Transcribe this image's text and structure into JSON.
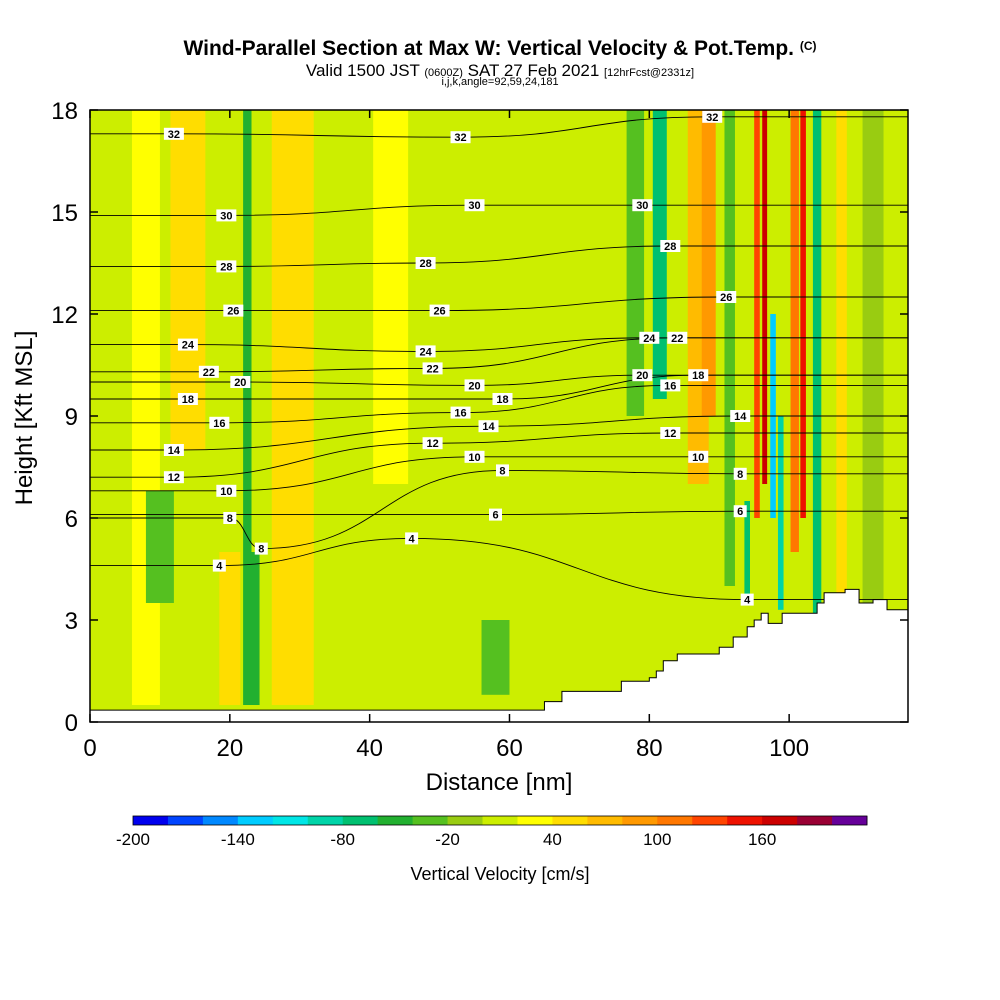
{
  "title": {
    "main": "Wind-Parallel Section at Max W: Vertical Velocity & Pot.Temp.",
    "main_units": "(C)",
    "valid_prefix": "Valid 1500 JST",
    "valid_zulu": "(0600Z)",
    "valid_date": "SAT 27 Feb 2021",
    "forecast": "[12hrFcst@2331z]",
    "indices": "i,j,k,angle=92,59,24,181"
  },
  "chart_data": {
    "type": "heatmap",
    "xlabel": "Distance [nm]",
    "ylabel": "Height [Kft MSL]",
    "xlim": [
      0,
      117
    ],
    "ylim": [
      0,
      18
    ],
    "x_ticks": [
      0,
      20,
      40,
      60,
      80,
      100
    ],
    "y_ticks": [
      0,
      3,
      6,
      9,
      12,
      15,
      18
    ],
    "x_tick_labels": [
      "0",
      "20",
      "40",
      "60",
      "80",
      "100"
    ],
    "y_tick_labels": [
      "0",
      "3",
      "6",
      "9",
      "12",
      "15",
      "18"
    ],
    "background_value_cm_s": 10,
    "bands": [
      {
        "x": 8,
        "ymin": 0.5,
        "ymax": 18,
        "w": 4,
        "value": 30
      },
      {
        "x": 14,
        "ymin": 8,
        "ymax": 18,
        "w": 5,
        "value": 45
      },
      {
        "x": 20,
        "ymin": 0.5,
        "ymax": 5,
        "w": 3,
        "value": 40
      },
      {
        "x": 22.5,
        "ymin": 0.5,
        "ymax": 18,
        "w": 1.2,
        "value": -60
      },
      {
        "x": 23.5,
        "ymin": 0.5,
        "ymax": 5,
        "w": 1.5,
        "value": -50
      },
      {
        "x": 29,
        "ymin": 0.5,
        "ymax": 18,
        "w": 6,
        "value": 50
      },
      {
        "x": 10,
        "ymin": 3.5,
        "ymax": 6.8,
        "w": 4,
        "value": -30
      },
      {
        "x": 43,
        "ymin": 7,
        "ymax": 18,
        "w": 5,
        "value": 20
      },
      {
        "x": 58,
        "ymin": 0.8,
        "ymax": 3,
        "w": 4,
        "value": -25
      },
      {
        "x": 78,
        "ymin": 9,
        "ymax": 18,
        "w": 2.5,
        "value": -40
      },
      {
        "x": 81.5,
        "ymin": 9.5,
        "ymax": 18,
        "w": 2,
        "value": -80
      },
      {
        "x": 87,
        "ymin": 7,
        "ymax": 18,
        "w": 3,
        "value": 60
      },
      {
        "x": 88.5,
        "ymin": 9,
        "ymax": 18,
        "w": 2,
        "value": 80
      },
      {
        "x": 91.5,
        "ymin": 4,
        "ymax": 18,
        "w": 1.5,
        "value": -40
      },
      {
        "x": 94,
        "ymin": 3.5,
        "ymax": 6.5,
        "w": 0.8,
        "value": -80
      },
      {
        "x": 95.4,
        "ymin": 6,
        "ymax": 18,
        "w": 0.8,
        "value": 130
      },
      {
        "x": 96.5,
        "ymin": 7,
        "ymax": 18,
        "w": 0.7,
        "value": 170
      },
      {
        "x": 97.7,
        "ymin": 6,
        "ymax": 12,
        "w": 0.8,
        "value": -140
      },
      {
        "x": 98.8,
        "ymin": 3.3,
        "ymax": 9,
        "w": 0.8,
        "value": -100
      },
      {
        "x": 100.8,
        "ymin": 5,
        "ymax": 18,
        "w": 1.2,
        "value": 110
      },
      {
        "x": 102,
        "ymin": 6,
        "ymax": 18,
        "w": 0.8,
        "value": 150
      },
      {
        "x": 104,
        "ymin": 3,
        "ymax": 18,
        "w": 1.2,
        "value": -80
      },
      {
        "x": 107.5,
        "ymin": 3.5,
        "ymax": 18,
        "w": 1.5,
        "value": 50
      },
      {
        "x": 112,
        "ymin": 3.5,
        "ymax": 18,
        "w": 3,
        "value": -20
      }
    ],
    "terrain_kft": [
      [
        0,
        0.35
      ],
      [
        65,
        0.35
      ],
      [
        67.5,
        0.6
      ],
      [
        72,
        0.9
      ],
      [
        76,
        0.9
      ],
      [
        80,
        1.2
      ],
      [
        81,
        1.3
      ],
      [
        82,
        1.5
      ],
      [
        84,
        1.8
      ],
      [
        86,
        2.0
      ],
      [
        90,
        2.0
      ],
      [
        92,
        2.2
      ],
      [
        94,
        2.5
      ],
      [
        95,
        2.8
      ],
      [
        96,
        3.0
      ],
      [
        97,
        3.2
      ],
      [
        99,
        2.9
      ],
      [
        104,
        3.2
      ],
      [
        105,
        3.5
      ],
      [
        108,
        3.8
      ],
      [
        110,
        3.9
      ],
      [
        112,
        3.5
      ],
      [
        114,
        3.6
      ],
      [
        116,
        3.3
      ],
      [
        117,
        3.3
      ]
    ],
    "isentrope_labels": [
      {
        "text": "32",
        "x": 12,
        "y": 17.3
      },
      {
        "text": "32",
        "x": 53,
        "y": 17.2
      },
      {
        "text": "32",
        "x": 89,
        "y": 17.8
      },
      {
        "text": "30",
        "x": 19.5,
        "y": 14.9
      },
      {
        "text": "30",
        "x": 55,
        "y": 15.2
      },
      {
        "text": "30",
        "x": 79,
        "y": 15.2
      },
      {
        "text": "28",
        "x": 19.5,
        "y": 13.4
      },
      {
        "text": "28",
        "x": 48,
        "y": 13.5
      },
      {
        "text": "28",
        "x": 83,
        "y": 14.0
      },
      {
        "text": "26",
        "x": 20.5,
        "y": 12.1
      },
      {
        "text": "26",
        "x": 50,
        "y": 12.1
      },
      {
        "text": "26",
        "x": 91,
        "y": 12.5
      },
      {
        "text": "24",
        "x": 14,
        "y": 11.1
      },
      {
        "text": "24",
        "x": 48,
        "y": 10.9
      },
      {
        "text": "24",
        "x": 80,
        "y": 11.3
      },
      {
        "text": "22",
        "x": 17,
        "y": 10.3
      },
      {
        "text": "22",
        "x": 49,
        "y": 10.4
      },
      {
        "text": "22",
        "x": 84,
        "y": 11.3
      },
      {
        "text": "20",
        "x": 21.5,
        "y": 10.0
      },
      {
        "text": "20",
        "x": 55,
        "y": 9.9
      },
      {
        "text": "20",
        "x": 79,
        "y": 10.2
      },
      {
        "text": "18",
        "x": 14,
        "y": 9.5
      },
      {
        "text": "18",
        "x": 59,
        "y": 9.5
      },
      {
        "text": "18",
        "x": 87,
        "y": 10.2
      },
      {
        "text": "16",
        "x": 18.5,
        "y": 8.8
      },
      {
        "text": "16",
        "x": 53,
        "y": 9.1
      },
      {
        "text": "16",
        "x": 83,
        "y": 9.9
      },
      {
        "text": "14",
        "x": 12,
        "y": 8.0
      },
      {
        "text": "14",
        "x": 57,
        "y": 8.7
      },
      {
        "text": "14",
        "x": 93,
        "y": 9.0
      },
      {
        "text": "12",
        "x": 12,
        "y": 7.2
      },
      {
        "text": "12",
        "x": 49,
        "y": 8.2
      },
      {
        "text": "12",
        "x": 83,
        "y": 8.5
      },
      {
        "text": "10",
        "x": 19.5,
        "y": 6.8
      },
      {
        "text": "10",
        "x": 55,
        "y": 7.8
      },
      {
        "text": "10",
        "x": 87,
        "y": 7.8
      },
      {
        "text": "8",
        "x": 20,
        "y": 6.0
      },
      {
        "text": "8",
        "x": 59,
        "y": 7.4
      },
      {
        "text": "8",
        "x": 93,
        "y": 7.3
      },
      {
        "text": "8",
        "x": 24.5,
        "y": 5.1
      },
      {
        "text": "6",
        "x": 58,
        "y": 6.1
      },
      {
        "text": "6",
        "x": 93,
        "y": 6.2
      },
      {
        "text": "4",
        "x": 18.5,
        "y": 4.6
      },
      {
        "text": "4",
        "x": 46,
        "y": 5.4
      },
      {
        "text": "4",
        "x": 94,
        "y": 3.6
      }
    ],
    "colorbar": {
      "label": "Vertical Velocity [cm/s]",
      "min": -200,
      "max": 200,
      "step": 20,
      "tick_values": [
        -200,
        -140,
        -80,
        -20,
        40,
        100,
        160
      ],
      "tick_labels": [
        "-200",
        "-140",
        "-80",
        "-20",
        "40",
        "100",
        "160"
      ],
      "colors": [
        "#0000ee",
        "#0044ff",
        "#0088ff",
        "#00ccff",
        "#00e6e6",
        "#00d4a8",
        "#00c070",
        "#22b030",
        "#55c020",
        "#99cc11",
        "#ccee00",
        "#ffff00",
        "#ffdd00",
        "#ffbb00",
        "#ff9900",
        "#ff7700",
        "#ff4400",
        "#ee1100",
        "#cc0000",
        "#990033",
        "#660099"
      ]
    }
  }
}
